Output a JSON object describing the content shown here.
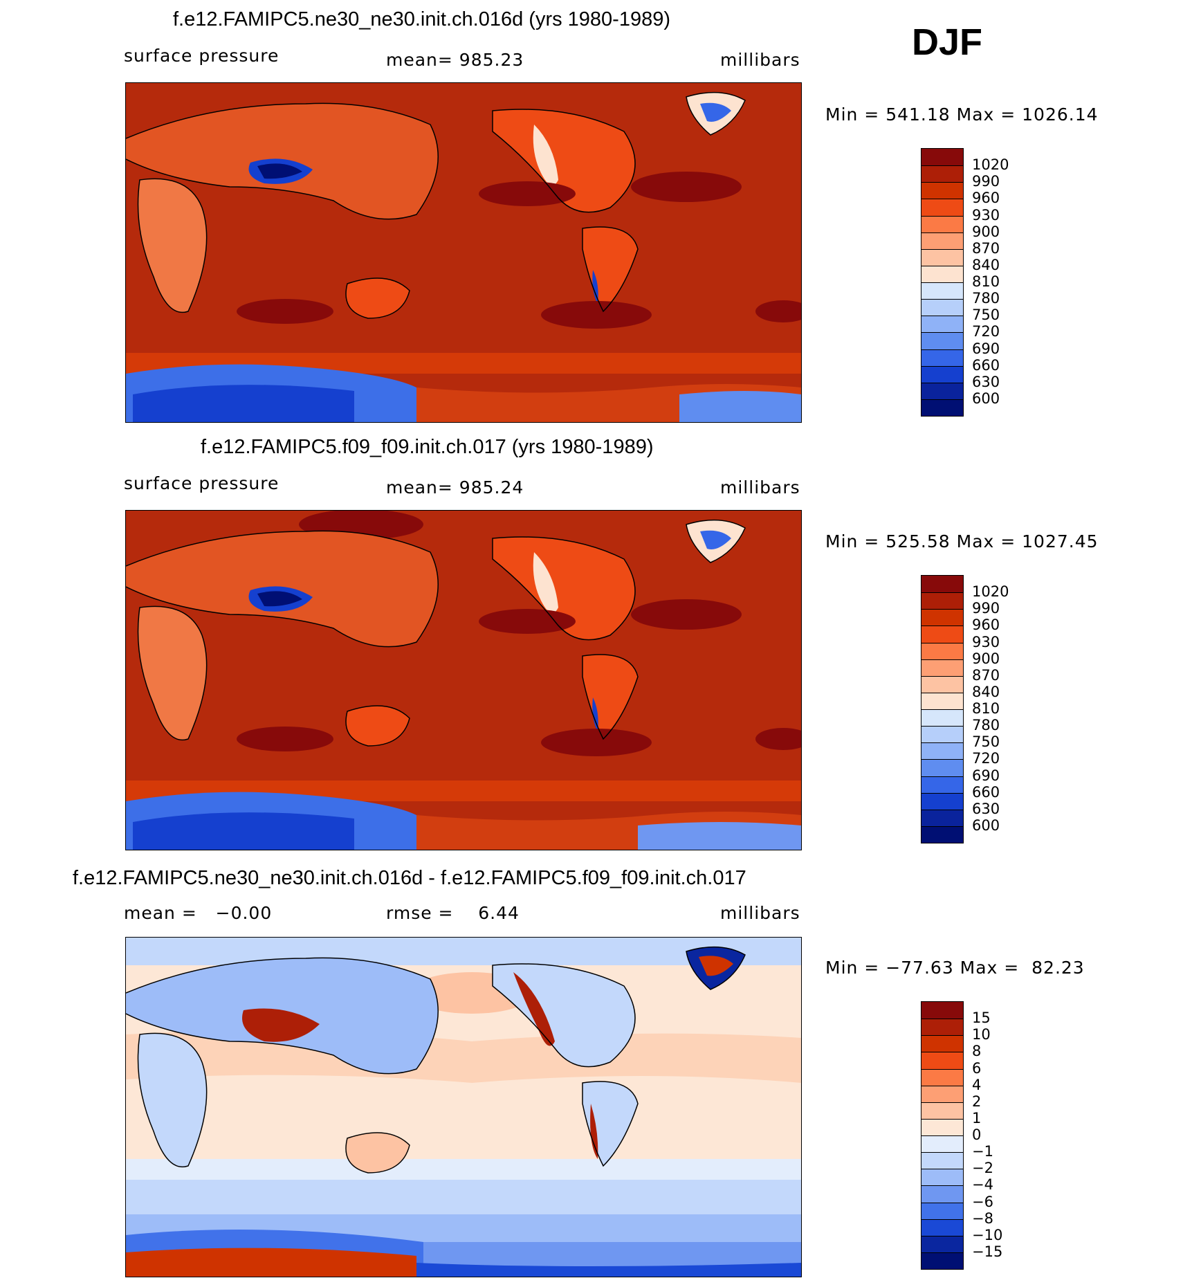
{
  "season": "DJF",
  "panels": [
    {
      "title": "f.e12.FAMIPC5.ne30_ne30.init.ch.016d (yrs 1980-1989)",
      "left_label": "surface pressure",
      "center_label": "mean= 985.23",
      "units": "millibars",
      "minmax": "Min = 541.18 Max = 1026.14",
      "legend": {
        "labels": [
          "1020",
          "990",
          "960",
          "930",
          "900",
          "870",
          "840",
          "810",
          "780",
          "750",
          "720",
          "690",
          "660",
          "630",
          "600"
        ],
        "colors": [
          "#870a0a",
          "#ad1f07",
          "#cf3300",
          "#ee4b15",
          "#fb7a45",
          "#fd9f74",
          "#fdc3a3",
          "#fde3d0",
          "#d6e6fb",
          "#b6cffa",
          "#8fb2f7",
          "#5f8df0",
          "#3566e8",
          "#1540cf",
          "#0a239c",
          "#000f73"
        ]
      }
    },
    {
      "title": "f.e12.FAMIPC5.f09_f09.init.ch.017 (yrs 1980-1989)",
      "left_label": "surface pressure",
      "center_label": "mean= 985.24",
      "units": "millibars",
      "minmax": "Min = 525.58 Max = 1027.45",
      "legend": {
        "labels": [
          "1020",
          "990",
          "960",
          "930",
          "900",
          "870",
          "840",
          "810",
          "780",
          "750",
          "720",
          "690",
          "660",
          "630",
          "600"
        ],
        "colors": [
          "#870a0a",
          "#ad1f07",
          "#cf3300",
          "#ee4b15",
          "#fb7a45",
          "#fd9f74",
          "#fdc3a3",
          "#fde3d0",
          "#d6e6fb",
          "#b6cffa",
          "#8fb2f7",
          "#5f8df0",
          "#3566e8",
          "#1540cf",
          "#0a239c",
          "#000f73"
        ]
      }
    },
    {
      "title": "f.e12.FAMIPC5.ne30_ne30.init.ch.016d - f.e12.FAMIPC5.f09_f09.init.ch.017",
      "left_label": "mean =   −0.00",
      "center_label": "rmse =    6.44",
      "units": "millibars",
      "minmax": "Min = −77.63 Max =  82.23",
      "legend": {
        "labels": [
          "15",
          "10",
          "8",
          "6",
          "4",
          "2",
          "1",
          "0",
          "−1",
          "−2",
          "−4",
          "−6",
          "−8",
          "−10",
          "−15"
        ],
        "colors": [
          "#870a0a",
          "#ad1f07",
          "#cf3300",
          "#ee4b15",
          "#fb7a45",
          "#fd9f74",
          "#fdc3a3",
          "#fde7d6",
          "#e3edfc",
          "#c3d8fb",
          "#9dbcf8",
          "#6f97f1",
          "#4172ea",
          "#1a49d6",
          "#0a269f",
          "#000f73"
        ]
      }
    }
  ]
}
